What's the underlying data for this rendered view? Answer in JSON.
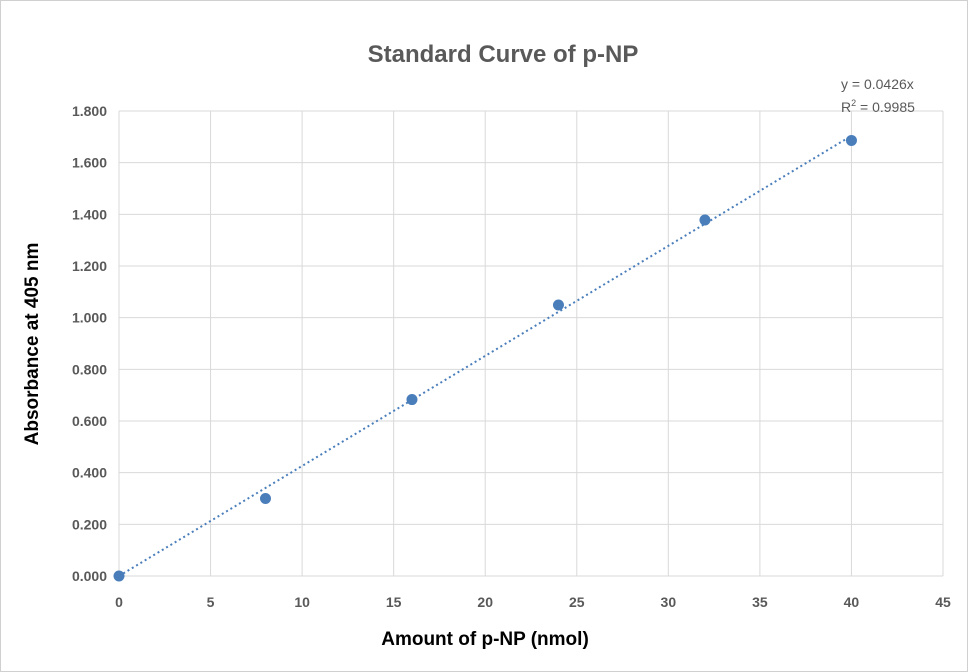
{
  "chart_data": {
    "type": "scatter",
    "title": "Standard Curve of p-NP",
    "xlabel": "Amount of p-NP  (nmol)",
    "ylabel": "Absorbance at 405 nm",
    "xlim": [
      0,
      45
    ],
    "ylim": [
      0,
      1.8
    ],
    "x_ticks": [
      "0",
      "5",
      "10",
      "15",
      "20",
      "25",
      "30",
      "35",
      "40",
      "45"
    ],
    "y_ticks": [
      "0.000",
      "0.200",
      "0.400",
      "0.600",
      "0.800",
      "1.000",
      "1.200",
      "1.400",
      "1.600",
      "1.800"
    ],
    "grid": true,
    "series": [
      {
        "x": [
          0,
          8,
          16,
          24,
          32,
          40
        ],
        "y": [
          0.0,
          0.3,
          0.683,
          1.049,
          1.378,
          1.686
        ]
      }
    ],
    "trendline": {
      "type": "linear",
      "slope": 0.0426,
      "intercept": 0,
      "x_range": [
        0,
        40
      ],
      "equation_label": "y = 0.0426x",
      "r2_prefix": "R",
      "r2_sup": "2",
      "r2_value": " = 0.9985"
    },
    "colors": {
      "marker": "#4a7ebb",
      "trendline": "#4a7ebb",
      "grid": "#d9d9d9"
    }
  }
}
